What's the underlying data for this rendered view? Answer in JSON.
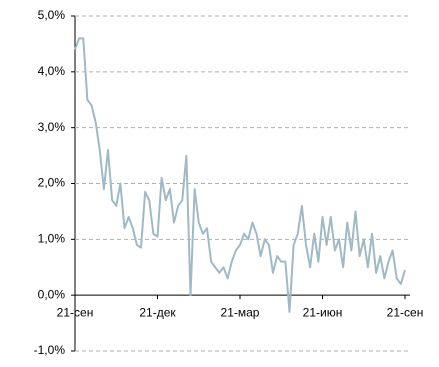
{
  "chart_data": {
    "type": "line",
    "categories": [
      "21-сен",
      null,
      null,
      null,
      null,
      null,
      null,
      null,
      null,
      null,
      null,
      null,
      null,
      null,
      null,
      null,
      null,
      null,
      null,
      null,
      "21-дек",
      null,
      null,
      null,
      null,
      null,
      null,
      null,
      null,
      null,
      null,
      null,
      null,
      null,
      null,
      null,
      null,
      null,
      null,
      null,
      "21-мар",
      null,
      null,
      null,
      null,
      null,
      null,
      null,
      null,
      null,
      null,
      null,
      null,
      null,
      null,
      null,
      null,
      null,
      null,
      null,
      "21-июн",
      null,
      null,
      null,
      null,
      null,
      null,
      null,
      null,
      null,
      null,
      null,
      null,
      null,
      null,
      null,
      null,
      null,
      null,
      null,
      "21-сен"
    ],
    "series": [
      {
        "color": "#9fbac6",
        "values": [
          4.4,
          4.6,
          4.6,
          3.5,
          3.4,
          3.1,
          2.6,
          1.9,
          2.6,
          1.7,
          1.6,
          2.0,
          1.2,
          1.4,
          1.2,
          0.9,
          0.85,
          1.85,
          1.7,
          1.1,
          1.05,
          2.1,
          1.7,
          1.9,
          1.3,
          1.6,
          1.7,
          2.5,
          0.0,
          1.9,
          1.3,
          1.1,
          1.2,
          0.6,
          0.5,
          0.4,
          0.5,
          0.3,
          0.6,
          0.8,
          0.9,
          1.1,
          1.0,
          1.3,
          1.1,
          0.7,
          1.0,
          0.9,
          0.4,
          0.7,
          0.6,
          0.6,
          -0.3,
          0.9,
          1.1,
          1.6,
          0.9,
          0.5,
          1.1,
          0.6,
          1.4,
          0.9,
          1.4,
          0.8,
          1.0,
          0.5,
          1.3,
          0.8,
          1.5,
          0.7,
          1.0,
          0.5,
          1.1,
          0.4,
          0.7,
          0.3,
          0.6,
          0.8,
          0.3,
          0.2,
          0.45
        ]
      }
    ],
    "ylim": [
      -1,
      5
    ],
    "yticks": [
      {
        "value": -1,
        "label": "-1,0%"
      },
      {
        "value": 0,
        "label": "0,0%"
      },
      {
        "value": 1,
        "label": "1,0%"
      },
      {
        "value": 2,
        "label": "2,0%"
      },
      {
        "value": 3,
        "label": "3,0%"
      },
      {
        "value": 4,
        "label": "4,0%"
      },
      {
        "value": 5,
        "label": "5,0%"
      }
    ],
    "grid": true
  }
}
